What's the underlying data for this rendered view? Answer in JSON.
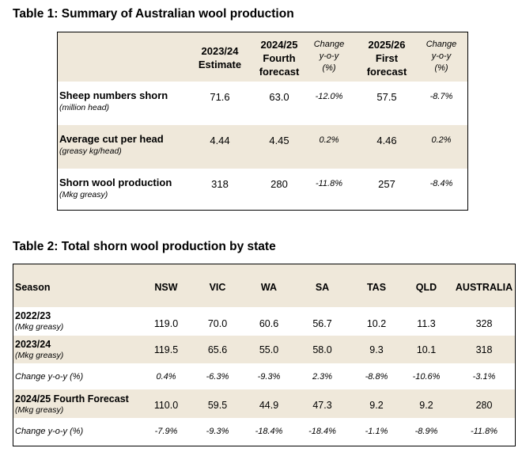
{
  "table1": {
    "title": "Table 1: Summary of Australian wool production",
    "headers": {
      "c1": [
        "2023/24",
        "Estimate"
      ],
      "c2": [
        "2024/25",
        "Fourth",
        "forecast"
      ],
      "c3": [
        "Change",
        "y-o-y",
        "(%)"
      ],
      "c4": [
        "2025/26",
        "First",
        "forecast"
      ],
      "c5": [
        "Change",
        "y-o-y",
        "(%)"
      ]
    },
    "rows": [
      {
        "label": "Sheep numbers shorn",
        "sub": "(million head)",
        "values": [
          "71.6",
          "63.0",
          "-12.0%",
          "57.5",
          "-8.7%"
        ]
      },
      {
        "label": "Average cut per head",
        "sub": "(greasy kg/head)",
        "values": [
          "4.44",
          "4.45",
          "0.2%",
          "4.46",
          "0.2%"
        ]
      },
      {
        "label": "Shorn wool production",
        "sub": "(Mkg greasy)",
        "values": [
          "318",
          "280",
          "-11.8%",
          "257",
          "-8.4%"
        ]
      }
    ]
  },
  "table2": {
    "title": "Table 2: Total shorn wool production by state",
    "headers": [
      "Season",
      "NSW",
      "VIC",
      "WA",
      "SA",
      "TAS",
      "QLD",
      "AUSTRALIA"
    ],
    "rows": [
      {
        "label": "2022/23",
        "sub": "(Mkg greasy)",
        "values": [
          "119.0",
          "70.0",
          "60.6",
          "56.7",
          "10.2",
          "11.3",
          "328"
        ]
      },
      {
        "label": "2023/24",
        "sub": "(Mkg greasy)",
        "values": [
          "119.5",
          "65.6",
          "55.0",
          "58.0",
          "9.3",
          "10.1",
          "318"
        ]
      },
      {
        "label": "Change y-o-y (%)",
        "sub": "",
        "values": [
          "0.4%",
          "-6.3%",
          "-9.3%",
          "2.3%",
          "-8.8%",
          "-10.6%",
          "-3.1%"
        ]
      },
      {
        "label": "2024/25 Fourth Forecast",
        "sub": "(Mkg greasy)",
        "values": [
          "110.0",
          "59.5",
          "44.9",
          "47.3",
          "9.2",
          "9.2",
          "280"
        ]
      },
      {
        "label": "Change y-o-y (%)",
        "sub": "",
        "values": [
          "-7.9%",
          "-9.3%",
          "-18.4%",
          "-18.4%",
          "-1.1%",
          "-8.9%",
          "-11.8%"
        ]
      }
    ]
  }
}
